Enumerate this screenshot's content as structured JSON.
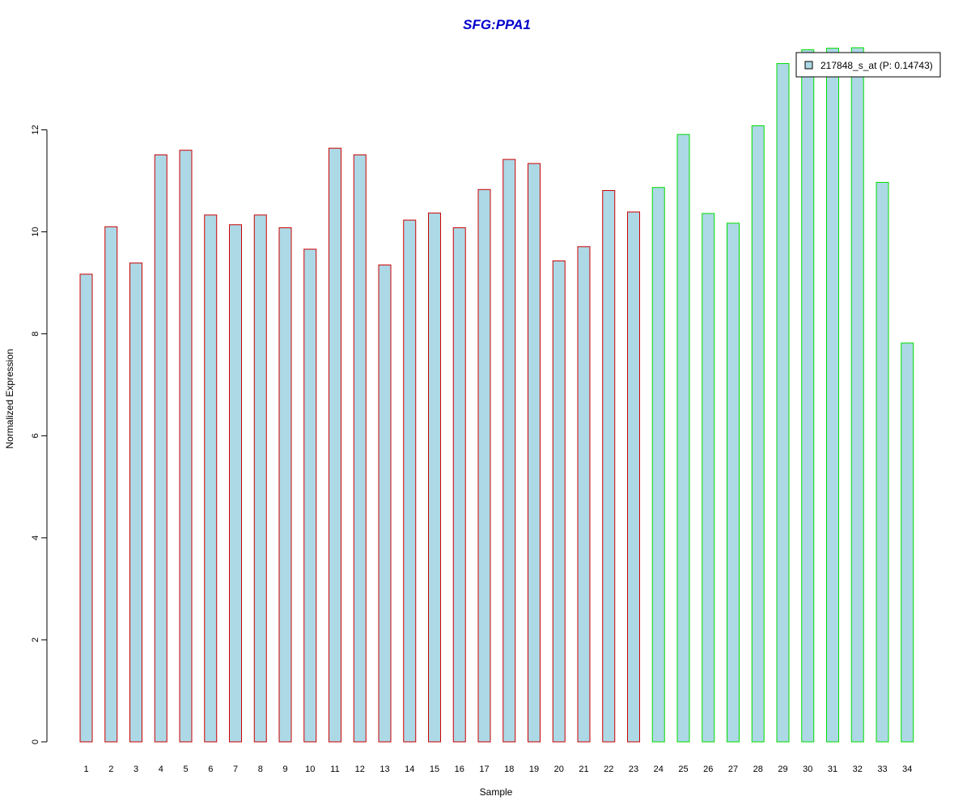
{
  "chart_data": {
    "type": "bar",
    "title": "SFG:PPA1",
    "xlabel": "Sample",
    "ylabel": "Normalized Expression",
    "categories": [
      "1",
      "2",
      "3",
      "4",
      "5",
      "6",
      "7",
      "8",
      "9",
      "10",
      "11",
      "12",
      "13",
      "14",
      "15",
      "16",
      "17",
      "18",
      "19",
      "20",
      "21",
      "22",
      "23",
      "24",
      "25",
      "26",
      "27",
      "28",
      "29",
      "30",
      "31",
      "32",
      "33",
      "34"
    ],
    "values": [
      9.17,
      10.1,
      9.39,
      11.51,
      11.6,
      10.33,
      10.14,
      10.33,
      10.08,
      9.66,
      11.64,
      11.51,
      9.35,
      10.23,
      10.37,
      10.08,
      10.83,
      11.42,
      11.34,
      9.43,
      9.71,
      10.81,
      10.39,
      10.87,
      11.91,
      10.36,
      10.17,
      12.08,
      13.3,
      13.57,
      13.6,
      13.61,
      10.97,
      7.82
    ],
    "groups": [
      "red",
      "red",
      "red",
      "red",
      "red",
      "red",
      "red",
      "red",
      "red",
      "red",
      "red",
      "red",
      "red",
      "red",
      "red",
      "red",
      "red",
      "red",
      "red",
      "red",
      "red",
      "red",
      "red",
      "green",
      "green",
      "green",
      "green",
      "green",
      "green",
      "green",
      "green",
      "green",
      "green",
      "green"
    ],
    "yticks": [
      0,
      2,
      4,
      6,
      8,
      10,
      12
    ],
    "ylim": [
      0,
      13.61
    ],
    "legend": {
      "label": "217848_s_at (P: 0.14743)",
      "position": "top-right"
    },
    "colors": {
      "title": "#0000cc",
      "bar_fill": "#add8e6",
      "border_red": "#cc0000",
      "border_green": "#00dd00",
      "axis": "#000000"
    }
  }
}
